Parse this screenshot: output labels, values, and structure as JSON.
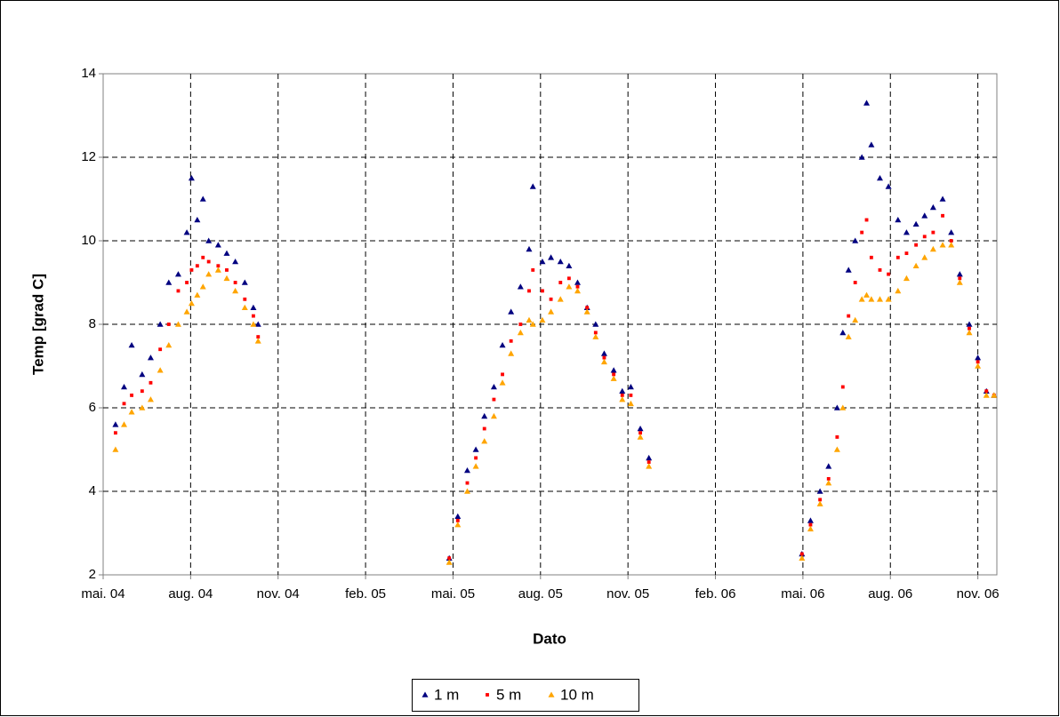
{
  "chart_data": {
    "type": "scatter",
    "x_label": "Dato",
    "y_label": "Temp [grad C]",
    "xlim": [
      38108,
      39048
    ],
    "ylim": [
      2,
      14
    ],
    "xticks": [
      {
        "value": 38108,
        "label": "mai. 04"
      },
      {
        "value": 38200,
        "label": "aug. 04"
      },
      {
        "value": 38292,
        "label": "nov. 04"
      },
      {
        "value": 38384,
        "label": "feb. 05"
      },
      {
        "value": 38476,
        "label": "mai. 05"
      },
      {
        "value": 38568,
        "label": "aug. 05"
      },
      {
        "value": 38660,
        "label": "nov. 05"
      },
      {
        "value": 38752,
        "label": "feb. 06"
      },
      {
        "value": 38844,
        "label": "mai. 06"
      },
      {
        "value": 38936,
        "label": "aug. 06"
      },
      {
        "value": 39028,
        "label": "nov. 06"
      }
    ],
    "yticks": [
      2,
      4,
      6,
      8,
      10,
      12,
      14
    ],
    "grid": true,
    "legend": "bottom",
    "x": [
      38121,
      38130,
      38138,
      38149,
      38158,
      38168,
      38177,
      38187,
      38196,
      38201,
      38207,
      38213,
      38219,
      38229,
      38238,
      38247,
      38257,
      38266,
      38271,
      38472,
      38481,
      38491,
      38500,
      38509,
      38519,
      38528,
      38537,
      38547,
      38556,
      38560,
      38570,
      38579,
      38589,
      38598,
      38607,
      38617,
      38626,
      38635,
      38645,
      38654,
      38663,
      38673,
      38682,
      38843,
      38852,
      38862,
      38871,
      38880,
      38886,
      38892,
      38899,
      38906,
      38911,
      38916,
      38925,
      38934,
      38944,
      38953,
      38963,
      38972,
      38981,
      38991,
      39000,
      39009,
      39019,
      39028,
      39037,
      39045
    ],
    "series": [
      {
        "name": "1 m",
        "color": "#000080",
        "marker": "triangle",
        "values": [
          5.6,
          6.5,
          7.5,
          6.8,
          7.2,
          8.0,
          9.0,
          9.2,
          10.2,
          11.5,
          10.5,
          11.0,
          10.0,
          9.9,
          9.7,
          9.5,
          9.0,
          8.4,
          8.0,
          2.4,
          3.4,
          4.5,
          5.0,
          5.8,
          6.5,
          7.5,
          8.3,
          8.9,
          9.8,
          11.3,
          9.5,
          9.6,
          9.5,
          9.4,
          9.0,
          8.4,
          8.0,
          7.3,
          6.9,
          6.4,
          6.5,
          5.5,
          4.8,
          2.5,
          3.3,
          4.0,
          4.6,
          6.0,
          7.8,
          9.3,
          10.0,
          12.0,
          13.3,
          12.3,
          11.5,
          11.3,
          10.5,
          10.2,
          10.4,
          10.6,
          10.8,
          11.0,
          10.2,
          9.2,
          8.0,
          7.2,
          6.4,
          6.3
        ]
      },
      {
        "name": "5 m",
        "color": "#ff0000",
        "marker": "square",
        "values": [
          5.4,
          6.1,
          6.3,
          6.4,
          6.6,
          7.4,
          8.0,
          8.8,
          9.0,
          9.3,
          9.4,
          9.6,
          9.5,
          9.4,
          9.3,
          9.0,
          8.6,
          8.2,
          7.7,
          2.4,
          3.3,
          4.2,
          4.8,
          5.5,
          6.2,
          6.8,
          7.6,
          8.0,
          8.8,
          9.3,
          8.8,
          8.6,
          9.0,
          9.1,
          8.9,
          8.4,
          7.8,
          7.2,
          6.8,
          6.3,
          6.3,
          5.4,
          4.7,
          2.5,
          3.2,
          3.8,
          4.3,
          5.3,
          6.5,
          8.2,
          9.0,
          10.2,
          10.5,
          9.6,
          9.3,
          9.2,
          9.6,
          9.7,
          9.9,
          10.1,
          10.2,
          10.6,
          10.0,
          9.1,
          7.9,
          7.1,
          6.4,
          6.3
        ]
      },
      {
        "name": "10 m",
        "color": "#ffa500",
        "marker": "triangle",
        "values": [
          5.0,
          5.6,
          5.9,
          6.0,
          6.2,
          6.9,
          7.5,
          8.0,
          8.3,
          8.5,
          8.7,
          8.9,
          9.2,
          9.3,
          9.1,
          8.8,
          8.4,
          8.0,
          7.6,
          2.3,
          3.2,
          4.0,
          4.6,
          5.2,
          5.8,
          6.6,
          7.3,
          7.8,
          8.1,
          8.0,
          8.1,
          8.3,
          8.6,
          8.9,
          8.8,
          8.3,
          7.7,
          7.1,
          6.7,
          6.2,
          6.1,
          5.3,
          4.6,
          2.4,
          3.1,
          3.7,
          4.2,
          5.0,
          6.0,
          7.7,
          8.1,
          8.6,
          8.7,
          8.6,
          8.6,
          8.6,
          8.8,
          9.1,
          9.4,
          9.6,
          9.8,
          9.9,
          9.9,
          9.0,
          7.8,
          7.0,
          6.3,
          6.3
        ]
      }
    ]
  }
}
